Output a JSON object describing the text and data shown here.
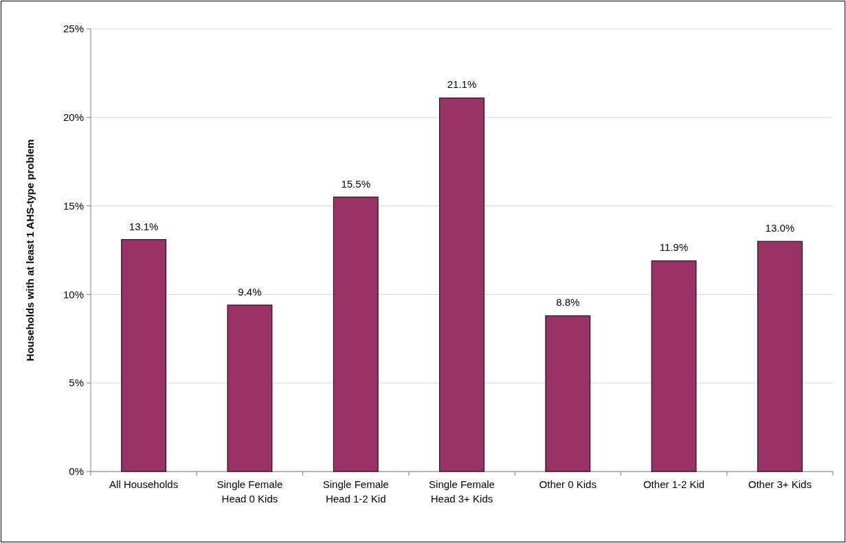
{
  "chart_data": {
    "type": "bar",
    "ylabel": "Households with at least 1 AHS-type problem",
    "categories": [
      "All Households",
      "Single Female Head 0 Kids",
      "Single Female Head 1-2 Kid",
      "Single Female Head 3+ Kids",
      "Other 0 Kids",
      "Other 1-2 Kid",
      "Other 3+ Kids"
    ],
    "values": [
      13.1,
      9.4,
      15.5,
      21.1,
      8.8,
      11.9,
      13.0
    ],
    "value_labels": [
      "13.1%",
      "9.4%",
      "15.5%",
      "21.1%",
      "8.8%",
      "11.9%",
      "13.0%"
    ],
    "color": "#993366",
    "ylim": [
      0,
      25
    ],
    "yticks": [
      {
        "value": 0,
        "label": "0%"
      },
      {
        "value": 5,
        "label": "5%"
      },
      {
        "value": 10,
        "label": "10%"
      },
      {
        "value": 15,
        "label": "15%"
      },
      {
        "value": 20,
        "label": "20%"
      },
      {
        "value": 25,
        "label": "25%"
      }
    ],
    "grid": "y"
  }
}
